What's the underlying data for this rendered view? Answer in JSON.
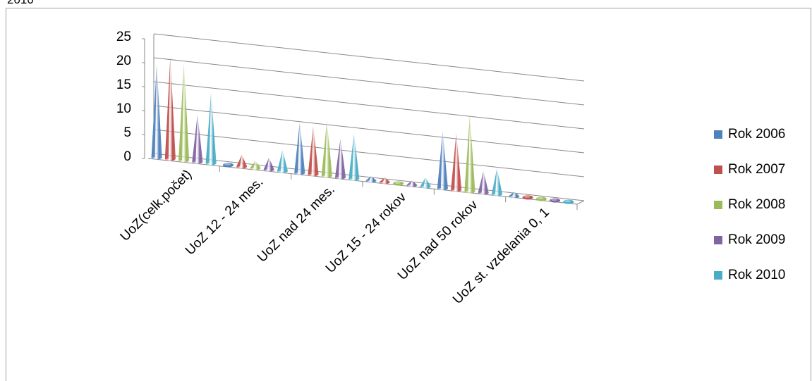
{
  "page": {
    "clipped_top_text": "2010"
  },
  "chart_data": {
    "type": "bar",
    "variant": "3d-cone",
    "categories": [
      "UoZ(celk.počet)",
      "UoZ 12 - 24 mes.",
      "UoZ nad 24 mes.",
      "UoZ 15 - 24 rokov",
      "UoZ nad 50 rokov",
      "UoZ st. vzdelania 0, 1"
    ],
    "series": [
      {
        "name": "Rok 2006",
        "color": "#4f81bd",
        "values": [
          19.5,
          0.5,
          11,
          1,
          13,
          1
        ]
      },
      {
        "name": "Rok 2007",
        "color": "#c0504d",
        "values": [
          21.5,
          2.5,
          10.5,
          1,
          13,
          0.3
        ]
      },
      {
        "name": "Rok 2008",
        "color": "#9bbb59",
        "values": [
          20.5,
          1.5,
          12,
          0.3,
          17.5,
          0.3
        ]
      },
      {
        "name": "Rok 2009",
        "color": "#8064a2",
        "values": [
          10,
          2.5,
          8.5,
          1,
          5,
          0.3
        ]
      },
      {
        "name": "Rok 2010",
        "color": "#4bacc6",
        "values": [
          15,
          4.5,
          10,
          2,
          6,
          0.3
        ]
      }
    ],
    "y_ticks": [
      "0",
      "5",
      "10",
      "15",
      "20",
      "25"
    ],
    "ylim": [
      0,
      25
    ],
    "grid": true,
    "legend_position": "right"
  }
}
